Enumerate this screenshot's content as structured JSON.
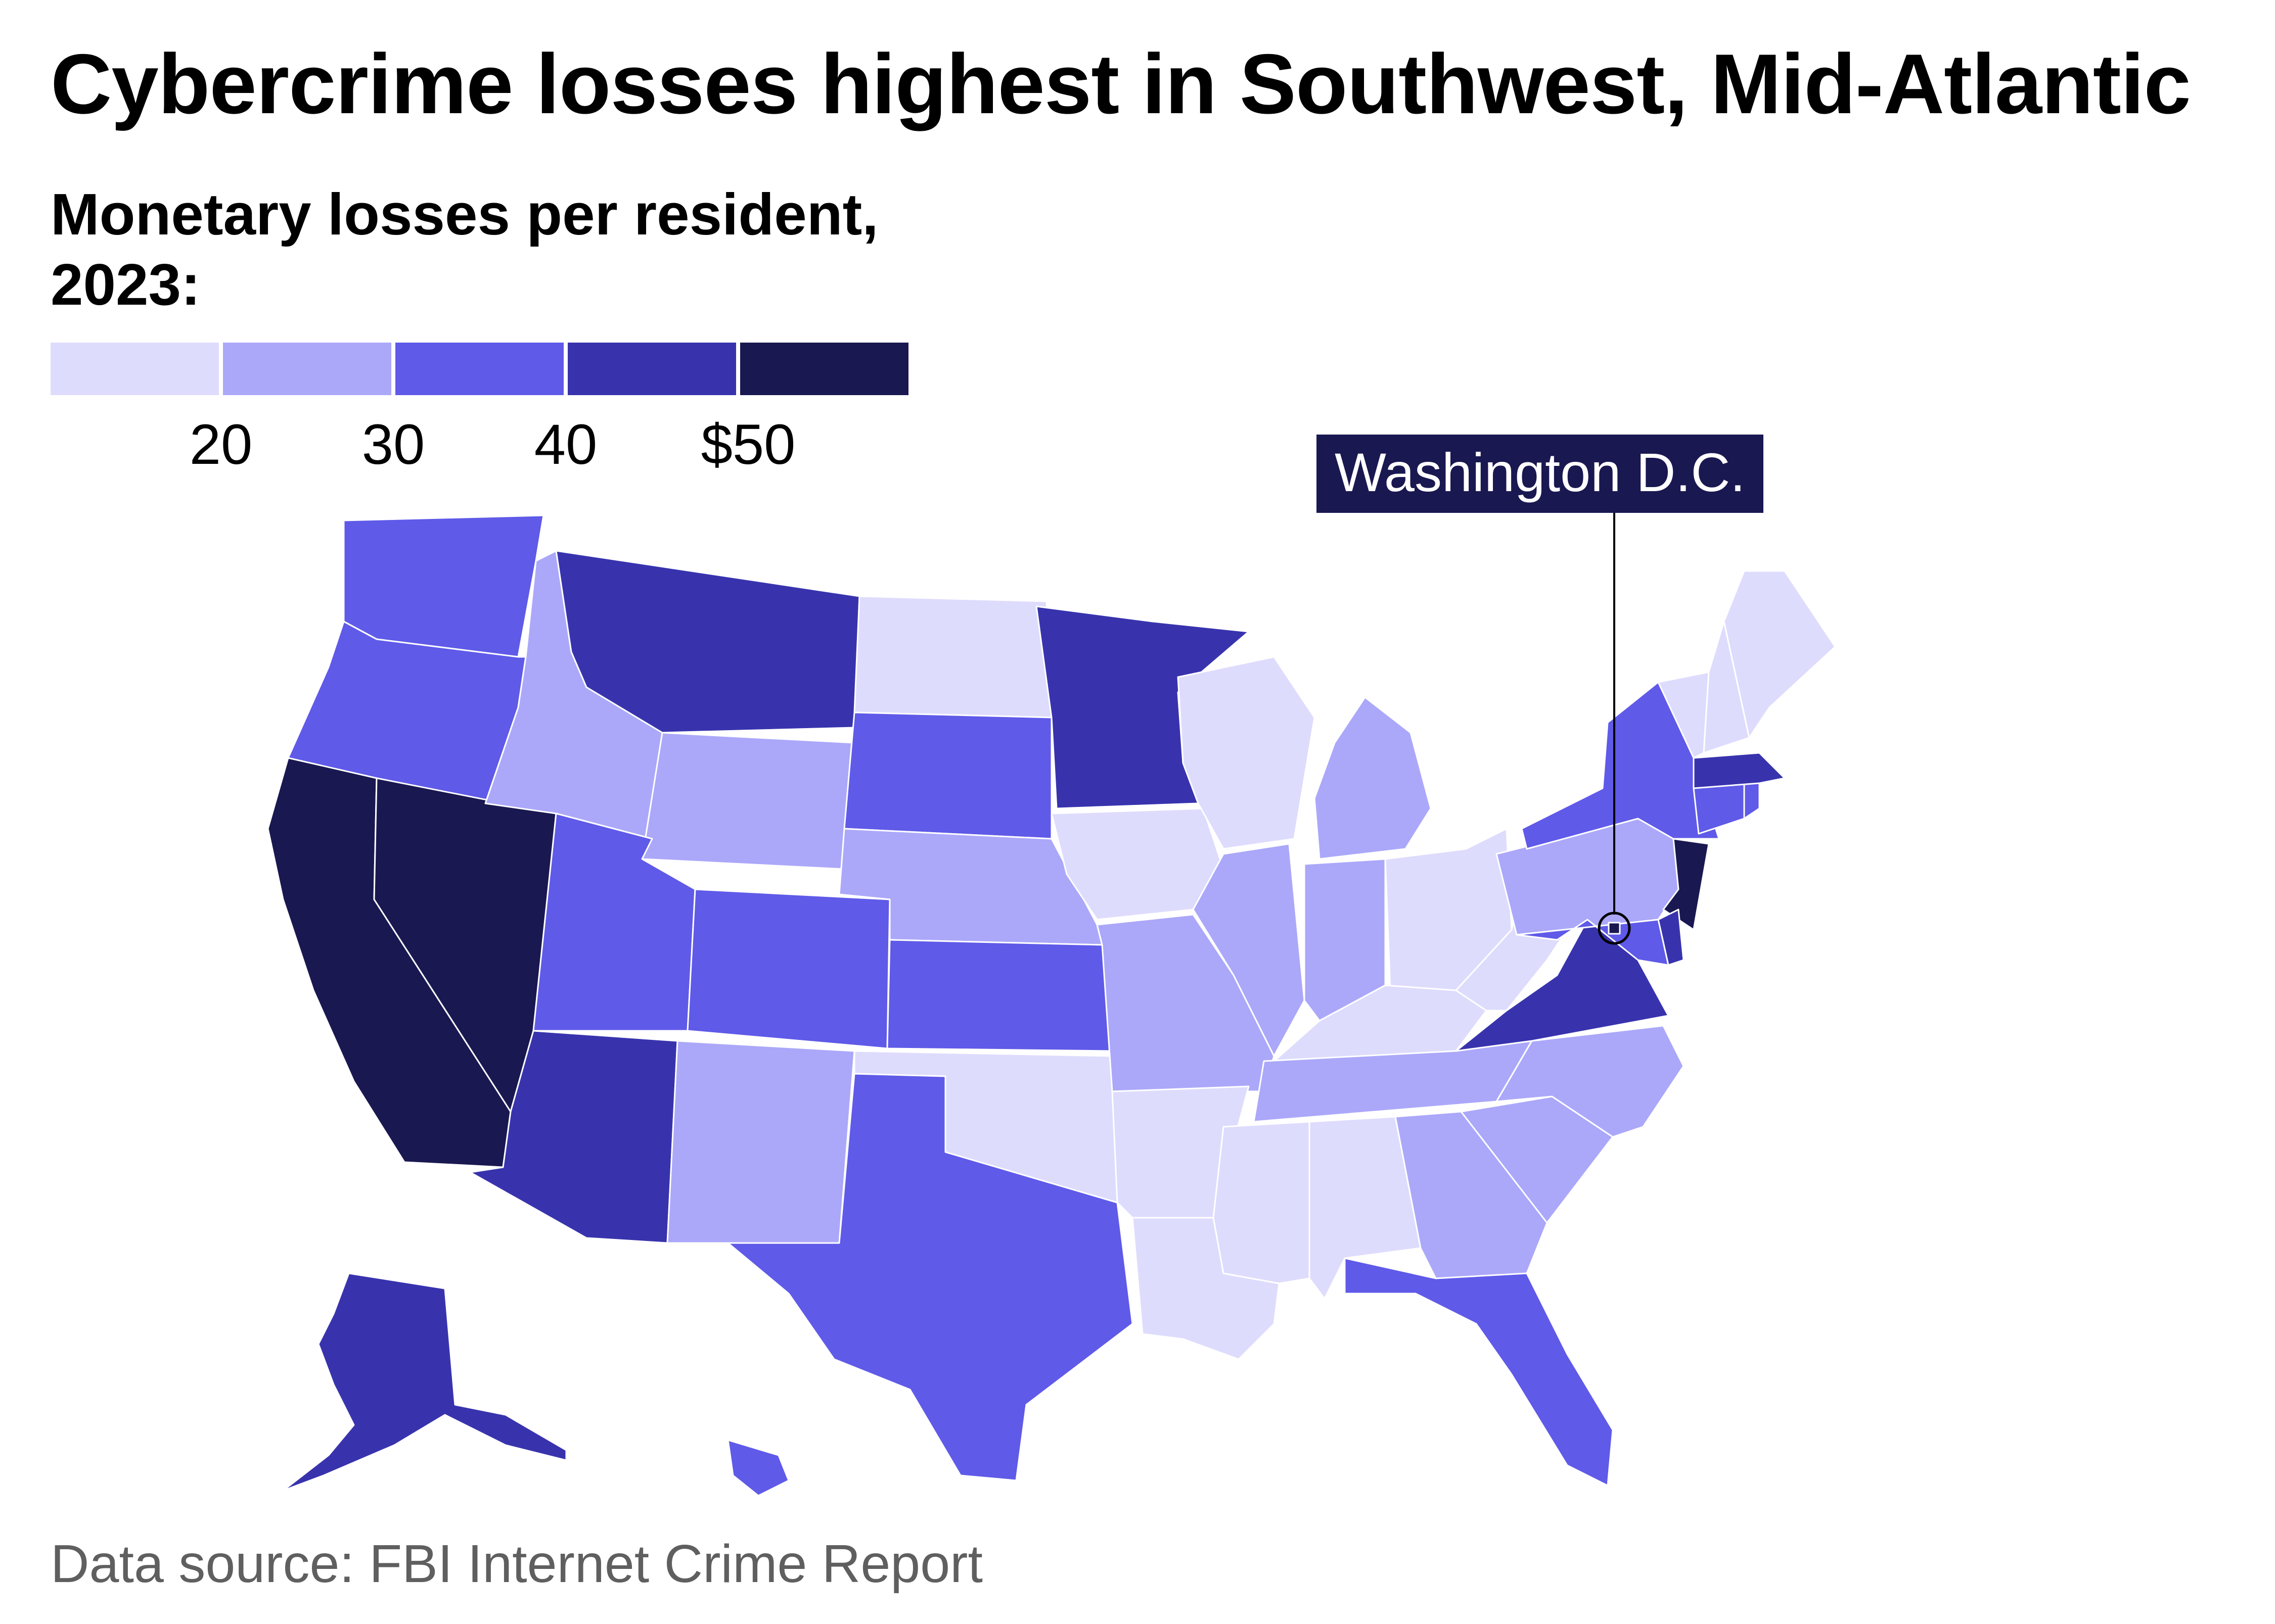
{
  "title": "Cybercrime losses highest in Southwest, Mid-Atlantic",
  "legend": {
    "title": "Monetary losses per resident, 2023:",
    "ticks": [
      "20",
      "30",
      "40",
      "$50"
    ],
    "colors": [
      "#dedcfd",
      "#aba8fa",
      "#5f5ae8",
      "#3833ad",
      "#1a1851"
    ]
  },
  "callout": "Washington D.C.",
  "source": "Data source: FBI Internet Crime Report",
  "map_data": {
    "type": "choropleth",
    "bins": [
      "<20",
      "20-30",
      "30-40",
      "40-50",
      ">=50"
    ],
    "states": [
      {
        "id": "WA",
        "bin": 2
      },
      {
        "id": "OR",
        "bin": 2
      },
      {
        "id": "CA",
        "bin": 4
      },
      {
        "id": "NV",
        "bin": 4
      },
      {
        "id": "ID",
        "bin": 1
      },
      {
        "id": "MT",
        "bin": 3
      },
      {
        "id": "WY",
        "bin": 1
      },
      {
        "id": "UT",
        "bin": 2
      },
      {
        "id": "CO",
        "bin": 2
      },
      {
        "id": "AZ",
        "bin": 3
      },
      {
        "id": "NM",
        "bin": 1
      },
      {
        "id": "ND",
        "bin": 0
      },
      {
        "id": "SD",
        "bin": 2
      },
      {
        "id": "NE",
        "bin": 1
      },
      {
        "id": "KS",
        "bin": 2
      },
      {
        "id": "OK",
        "bin": 0
      },
      {
        "id": "TX",
        "bin": 2
      },
      {
        "id": "MN",
        "bin": 3
      },
      {
        "id": "IA",
        "bin": 0
      },
      {
        "id": "MO",
        "bin": 1
      },
      {
        "id": "AR",
        "bin": 0
      },
      {
        "id": "LA",
        "bin": 0
      },
      {
        "id": "WI",
        "bin": 0
      },
      {
        "id": "IL",
        "bin": 1
      },
      {
        "id": "MI",
        "bin": 1
      },
      {
        "id": "IN",
        "bin": 1
      },
      {
        "id": "OH",
        "bin": 0
      },
      {
        "id": "KY",
        "bin": 0
      },
      {
        "id": "TN",
        "bin": 1
      },
      {
        "id": "MS",
        "bin": 0
      },
      {
        "id": "AL",
        "bin": 0
      },
      {
        "id": "GA",
        "bin": 1
      },
      {
        "id": "FL",
        "bin": 2
      },
      {
        "id": "SC",
        "bin": 1
      },
      {
        "id": "NC",
        "bin": 1
      },
      {
        "id": "VA",
        "bin": 3
      },
      {
        "id": "WV",
        "bin": 0
      },
      {
        "id": "PA",
        "bin": 1
      },
      {
        "id": "NY",
        "bin": 2
      },
      {
        "id": "NJ",
        "bin": 4
      },
      {
        "id": "DE",
        "bin": 3
      },
      {
        "id": "MD",
        "bin": 2
      },
      {
        "id": "DC",
        "bin": 4
      },
      {
        "id": "CT",
        "bin": 2
      },
      {
        "id": "RI",
        "bin": 2
      },
      {
        "id": "MA",
        "bin": 3
      },
      {
        "id": "VT",
        "bin": 0
      },
      {
        "id": "NH",
        "bin": 0
      },
      {
        "id": "ME",
        "bin": 0
      },
      {
        "id": "AK",
        "bin": 3
      },
      {
        "id": "HI",
        "bin": 2
      }
    ]
  }
}
